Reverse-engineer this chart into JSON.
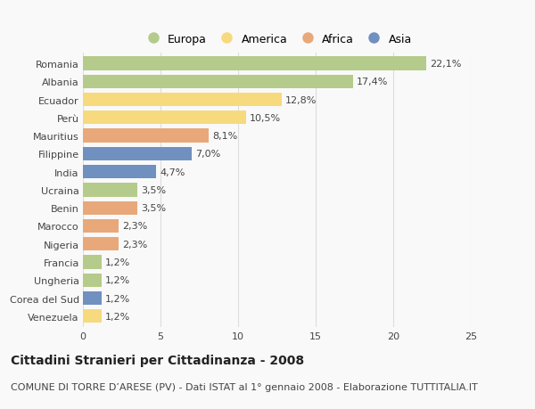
{
  "categories": [
    "Romania",
    "Albania",
    "Ecuador",
    "Perù",
    "Mauritius",
    "Filippine",
    "India",
    "Ucraina",
    "Benin",
    "Marocco",
    "Nigeria",
    "Francia",
    "Ungheria",
    "Corea del Sud",
    "Venezuela"
  ],
  "values": [
    22.1,
    17.4,
    12.8,
    10.5,
    8.1,
    7.0,
    4.7,
    3.5,
    3.5,
    2.3,
    2.3,
    1.2,
    1.2,
    1.2,
    1.2
  ],
  "labels": [
    "22,1%",
    "17,4%",
    "12,8%",
    "10,5%",
    "8,1%",
    "7,0%",
    "4,7%",
    "3,5%",
    "3,5%",
    "2,3%",
    "2,3%",
    "1,2%",
    "1,2%",
    "1,2%",
    "1,2%"
  ],
  "continents": [
    "Europa",
    "Europa",
    "America",
    "America",
    "Africa",
    "Asia",
    "Asia",
    "Europa",
    "Africa",
    "Africa",
    "Africa",
    "Europa",
    "Europa",
    "Asia",
    "America"
  ],
  "continent_colors": {
    "Europa": "#b5cb8b",
    "America": "#f7d97e",
    "Africa": "#e8a87a",
    "Asia": "#7090bf"
  },
  "legend_order": [
    "Europa",
    "America",
    "Africa",
    "Asia"
  ],
  "xlim": [
    0,
    25
  ],
  "xticks": [
    0,
    5,
    10,
    15,
    20,
    25
  ],
  "title": "Cittadini Stranieri per Cittadinanza - 2008",
  "subtitle": "COMUNE DI TORRE D’ARESE (PV) - Dati ISTAT al 1° gennaio 2008 - Elaborazione TUTTITALIA.IT",
  "background_color": "#f9f9f9",
  "bar_height": 0.75,
  "grid_color": "#dddddd",
  "text_color": "#444444",
  "title_fontsize": 10,
  "subtitle_fontsize": 8,
  "tick_fontsize": 8,
  "label_fontsize": 8
}
